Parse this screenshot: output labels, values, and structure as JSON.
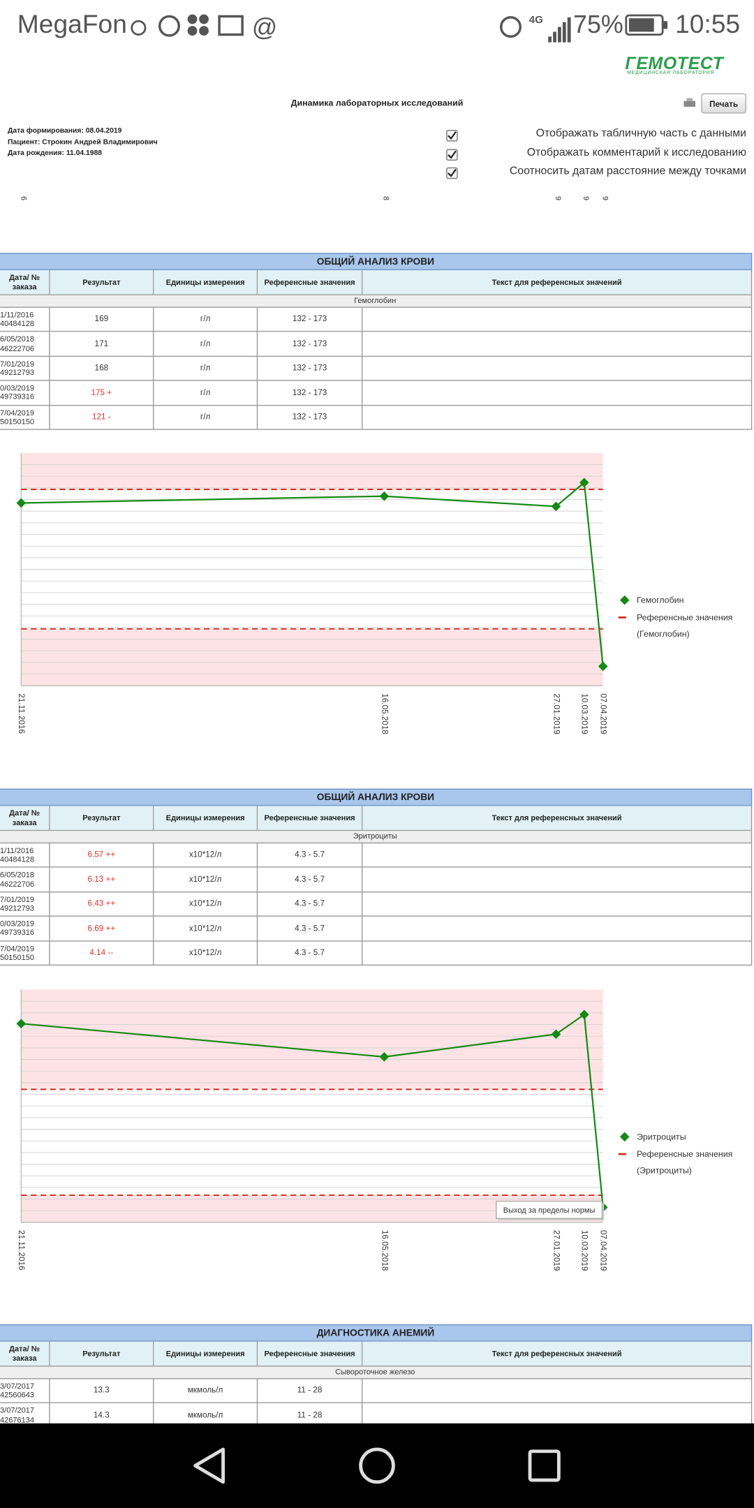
{
  "status_bar": {
    "carrier": "MegaFon",
    "network": "4G",
    "battery": "75%",
    "time": "10:55"
  },
  "header": {
    "logo": "ГЕМОТЕСТ",
    "logo_subtitle": "МЕДИЦИНСКАЯ ЛАБОРАТОРИЯ",
    "title": "Динамика лабораторных исследований",
    "print_button": "Печать"
  },
  "info": [
    "Дата формирования: 08.04.2019",
    "Пациент: Строкин Андрей Владимирович",
    "Дата рождения: 11.04.1988"
  ],
  "options": [
    "Отображать табличную часть с данными",
    "Отображать комментарий к исследованию",
    "Соотносить датам расстояние между точками"
  ],
  "top_labels": [
    "6",
    "8",
    "9",
    "9",
    "9"
  ],
  "sections": [
    {
      "title": "ОБЩИЙ АНАЛИЗ КРОВИ",
      "columns": [
        "Дата/ № заказа",
        "Результат",
        "Единицы измерения",
        "Референсные значения",
        "Текст для референсных значений"
      ],
      "analyte": "Гемоглобин",
      "rows": [
        {
          "date": "1/11/2016",
          "order": "40484128",
          "result": "169",
          "unit": "г/л",
          "ref": "132 - 173",
          "abnormal": false
        },
        {
          "date": "6/05/2018",
          "order": "46222706",
          "result": "171",
          "unit": "г/л",
          "ref": "132 - 173",
          "abnormal": false
        },
        {
          "date": "7/01/2019",
          "order": "49212793",
          "result": "168",
          "unit": "г/л",
          "ref": "132 - 173",
          "abnormal": false
        },
        {
          "date": "0/03/2019",
          "order": "49739316",
          "result": "175 +",
          "unit": "г/л",
          "ref": "132 - 173",
          "abnormal": true
        },
        {
          "date": "7/04/2019",
          "order": "50150150",
          "result": "121 -",
          "unit": "г/л",
          "ref": "132 - 173",
          "abnormal": true
        }
      ],
      "chart": {
        "type": "line",
        "x": [
          "21.11.2016",
          "16.05.2018",
          "27.01.2019",
          "10.03.2019",
          "07.04.2019"
        ],
        "values": [
          169,
          171,
          168,
          175,
          121
        ],
        "ylim": [
          115.3,
          183.7
        ],
        "reference": [
          132,
          173
        ],
        "grid": true,
        "color": "#138a13",
        "reference_color": "#d42a1e",
        "series_name": "Гемоглобин",
        "reference_name": "Референсные значения",
        "reference_note": "(Гемоглобин)"
      }
    },
    {
      "title": "ОБЩИЙ АНАЛИЗ КРОВИ",
      "columns": [
        "Дата/ № заказа",
        "Результат",
        "Единицы измерения",
        "Референсные значения",
        "Текст для референсных значений"
      ],
      "analyte": "Эритроциты",
      "rows": [
        {
          "date": "1/11/2016",
          "order": "40484128",
          "result": "6.57 ++",
          "unit": "x10*12/л",
          "ref": "4.3 - 5.7",
          "abnormal": true
        },
        {
          "date": "6/05/2018",
          "order": "46222706",
          "result": "6.13 ++",
          "unit": "x10*12/л",
          "ref": "4.3 - 5.7",
          "abnormal": true
        },
        {
          "date": "7/01/2019",
          "order": "49212793",
          "result": "6.43 ++",
          "unit": "x10*12/л",
          "ref": "4.3 - 5.7",
          "abnormal": true
        },
        {
          "date": "0/03/2019",
          "order": "49739316",
          "result": "6.69 ++",
          "unit": "x10*12/л",
          "ref": "4.3 - 5.7",
          "abnormal": true
        },
        {
          "date": "7/04/2019",
          "order": "50150150",
          "result": "4.14 --",
          "unit": "x10*12/л",
          "ref": "4.3 - 5.7",
          "abnormal": true
        }
      ],
      "chart": {
        "type": "line",
        "x": [
          "21.11.2016",
          "16.05.2018",
          "27.01.2019",
          "10.03.2019",
          "07.04.2019"
        ],
        "values": [
          6.57,
          6.13,
          6.43,
          6.69,
          4.14
        ],
        "ylim": [
          3.94,
          7.02
        ],
        "reference": [
          4.3,
          5.7
        ],
        "grid": true,
        "color": "#138a13",
        "reference_color": "#d42a1e",
        "series_name": "Эритроциты",
        "reference_name": "Референсные значения",
        "reference_note": "(Эритроциты)",
        "tooltip": "Выход за пределы нормы"
      }
    },
    {
      "title": "ДИАГНОСТИКА АНЕМИЙ",
      "columns": [
        "Дата/ № заказа",
        "Результат",
        "Единицы измерения",
        "Референсные значения",
        "Текст для референсных значений"
      ],
      "analyte": "Сывороточное железо",
      "rows": [
        {
          "date": "3/07/2017",
          "order": "42560643",
          "result": "13.3",
          "unit": "мкмоль/л",
          "ref": "11 - 28",
          "abnormal": false
        },
        {
          "date": "3/07/2017",
          "order": "42676134",
          "result": "14.3",
          "unit": "мкмоль/л",
          "ref": "11 - 28",
          "abnormal": false
        }
      ]
    }
  ]
}
